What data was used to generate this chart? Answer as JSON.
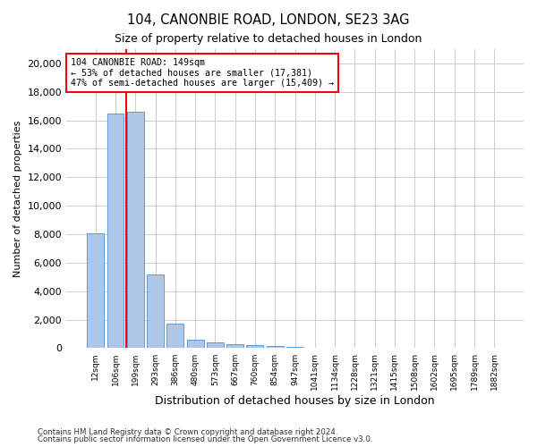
{
  "title1": "104, CANONBIE ROAD, LONDON, SE23 3AG",
  "title2": "Size of property relative to detached houses in London",
  "xlabel": "Distribution of detached houses by size in London",
  "ylabel": "Number of detached properties",
  "annotation_title": "104 CANONBIE ROAD: 149sqm",
  "annotation_line1": "← 53% of detached houses are smaller (17,381)",
  "annotation_line2": "47% of semi-detached houses are larger (15,409) →",
  "footer1": "Contains HM Land Registry data © Crown copyright and database right 2024.",
  "footer2": "Contains public sector information licensed under the Open Government Licence v3.0.",
  "bar_labels": [
    "12sqm",
    "106sqm",
    "199sqm",
    "293sqm",
    "386sqm",
    "480sqm",
    "573sqm",
    "667sqm",
    "760sqm",
    "854sqm",
    "947sqm",
    "1041sqm",
    "1134sqm",
    "1228sqm",
    "1321sqm",
    "1415sqm",
    "1508sqm",
    "1602sqm",
    "1695sqm",
    "1789sqm",
    "1882sqm"
  ],
  "bar_values": [
    8050,
    16500,
    16600,
    5200,
    1750,
    600,
    400,
    270,
    200,
    130,
    80,
    50,
    30,
    20,
    15,
    10,
    8,
    6,
    5,
    4,
    3
  ],
  "bar_color": "#aec6e8",
  "bar_edgecolor": "#5b9bd5",
  "red_line_index": 1.52,
  "property_sqm": 149,
  "ylim": [
    0,
    21000
  ],
  "yticks": [
    0,
    2000,
    4000,
    6000,
    8000,
    10000,
    12000,
    14000,
    16000,
    18000,
    20000
  ],
  "grid_color": "#cccccc",
  "annotation_box_color": "#ffcccc",
  "annotation_box_edgecolor": "#cc0000",
  "background_color": "#ffffff"
}
